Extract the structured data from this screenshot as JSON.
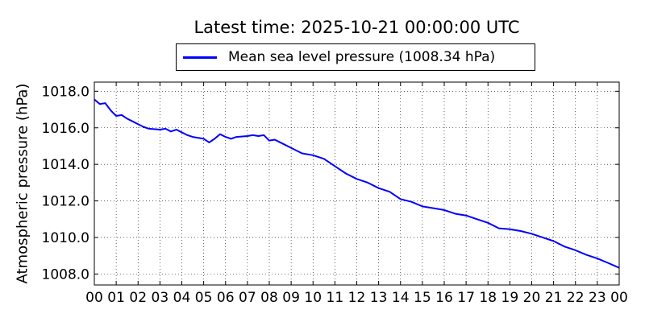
{
  "chart_data": {
    "type": "line",
    "title": "Latest time: 2025-10-21 00:00:00 UTC",
    "ylabel": "Atmospheric pressure (hPa)",
    "xlabel": "",
    "x_tick_labels": [
      "00",
      "01",
      "02",
      "03",
      "04",
      "05",
      "06",
      "07",
      "08",
      "09",
      "10",
      "11",
      "12",
      "13",
      "14",
      "15",
      "16",
      "17",
      "18",
      "19",
      "20",
      "21",
      "22",
      "23",
      "00"
    ],
    "y_ticks": [
      1008.0,
      1010.0,
      1012.0,
      1014.0,
      1016.0,
      1018.0
    ],
    "y_tick_labels": [
      "1008.0",
      "1010.0",
      "1012.0",
      "1014.0",
      "1016.0",
      "1018.0"
    ],
    "xlim": [
      0,
      24
    ],
    "ylim": [
      1007.4,
      1018.5
    ],
    "grid": true,
    "legend": {
      "placement": "top-center",
      "entries": [
        "Mean sea level pressure (1008.34 hPa)"
      ]
    },
    "series": [
      {
        "name": "Mean sea level pressure (1008.34 hPa)",
        "color": "#0000ff",
        "x": [
          0,
          0.25,
          0.5,
          0.75,
          1.0,
          1.25,
          1.5,
          1.75,
          2.0,
          2.25,
          2.5,
          3.0,
          3.25,
          3.5,
          3.75,
          4.0,
          4.25,
          4.5,
          5.0,
          5.25,
          5.5,
          5.75,
          6.0,
          6.25,
          6.5,
          7.0,
          7.25,
          7.5,
          7.75,
          8.0,
          8.25,
          8.5,
          8.75,
          9.0,
          9.5,
          10.0,
          10.25,
          10.5,
          11.0,
          11.5,
          12.0,
          12.5,
          13.0,
          13.5,
          14.0,
          14.5,
          15.0,
          15.5,
          16.0,
          16.5,
          17.0,
          17.5,
          18.0,
          18.5,
          19.0,
          19.5,
          20.0,
          20.5,
          21.0,
          21.5,
          22.0,
          22.5,
          23.0,
          23.5,
          24.0
        ],
        "values": [
          1017.55,
          1017.3,
          1017.35,
          1016.95,
          1016.65,
          1016.7,
          1016.5,
          1016.35,
          1016.2,
          1016.05,
          1015.95,
          1015.9,
          1015.95,
          1015.8,
          1015.9,
          1015.75,
          1015.6,
          1015.5,
          1015.4,
          1015.2,
          1015.4,
          1015.65,
          1015.5,
          1015.4,
          1015.5,
          1015.55,
          1015.6,
          1015.55,
          1015.6,
          1015.3,
          1015.35,
          1015.2,
          1015.05,
          1014.9,
          1014.6,
          1014.5,
          1014.4,
          1014.3,
          1013.9,
          1013.5,
          1013.2,
          1013.0,
          1012.7,
          1012.5,
          1012.1,
          1011.95,
          1011.7,
          1011.6,
          1011.5,
          1011.3,
          1011.2,
          1011.0,
          1010.8,
          1010.5,
          1010.45,
          1010.35,
          1010.2,
          1010.0,
          1009.8,
          1009.5,
          1009.3,
          1009.05,
          1008.85,
          1008.6,
          1008.34
        ]
      }
    ]
  }
}
